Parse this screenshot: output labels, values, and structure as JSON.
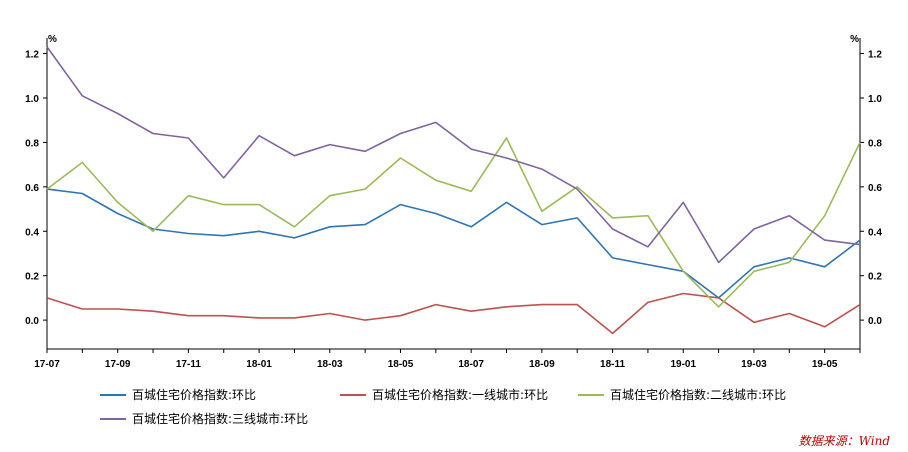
{
  "chart_data": {
    "type": "line",
    "title": "",
    "y_unit_left": "%",
    "y_unit_right": "%",
    "ylim": [
      -0.13,
      1.27
    ],
    "y_ticks": [
      "1.2",
      "1.0",
      "0.8",
      "0.6",
      "0.4",
      "0.2",
      "0.0"
    ],
    "y_tick_values": [
      1.2,
      1.0,
      0.8,
      0.6,
      0.4,
      0.2,
      0.0
    ],
    "x_ticks": [
      "17-07",
      "17-09",
      "17-11",
      "18-01",
      "18-03",
      "18-05",
      "18-07",
      "18-09",
      "18-11",
      "19-01",
      "19-03",
      "19-05"
    ],
    "x_tick_index": [
      0,
      2,
      4,
      6,
      8,
      10,
      12,
      14,
      16,
      18,
      20,
      22
    ],
    "x": [
      "2017-07",
      "2017-08",
      "2017-09",
      "2017-10",
      "2017-11",
      "2017-12",
      "2018-01",
      "2018-02",
      "2018-03",
      "2018-04",
      "2018-05",
      "2018-06",
      "2018-07",
      "2018-08",
      "2018-09",
      "2018-10",
      "2018-11",
      "2018-12",
      "2019-01",
      "2019-02",
      "2019-03",
      "2019-04",
      "2019-05",
      "2019-06"
    ],
    "grid": false,
    "legend_position": "bottom",
    "series": [
      {
        "name": "百城住宅价格指数:环比",
        "color": "#2e75b6",
        "values": [
          0.59,
          0.57,
          0.48,
          0.41,
          0.39,
          0.38,
          0.4,
          0.37,
          0.42,
          0.43,
          0.52,
          0.48,
          0.42,
          0.53,
          0.43,
          0.46,
          0.28,
          0.25,
          0.22,
          0.1,
          0.24,
          0.28,
          0.24,
          0.36
        ]
      },
      {
        "name": "百城住宅价格指数:一线城市:环比",
        "color": "#c0504d",
        "values": [
          0.1,
          0.05,
          0.05,
          0.04,
          0.02,
          0.02,
          0.01,
          0.01,
          0.03,
          0.0,
          0.02,
          0.07,
          0.04,
          0.06,
          0.07,
          0.07,
          -0.06,
          0.08,
          0.12,
          0.1,
          -0.01,
          0.03,
          -0.03,
          0.07
        ]
      },
      {
        "name": "百城住宅价格指数:二线城市:环比",
        "color": "#9bbb59",
        "values": [
          0.59,
          0.71,
          0.53,
          0.4,
          0.56,
          0.52,
          0.52,
          0.42,
          0.56,
          0.59,
          0.73,
          0.63,
          0.58,
          0.82,
          0.49,
          0.6,
          0.46,
          0.47,
          0.22,
          0.06,
          0.22,
          0.26,
          0.47,
          0.8
        ]
      },
      {
        "name": "百城住宅价格指数:三线城市:环比",
        "color": "#8064a2",
        "values": [
          1.23,
          1.01,
          0.93,
          0.84,
          0.82,
          0.64,
          0.83,
          0.74,
          0.79,
          0.76,
          0.84,
          0.89,
          0.77,
          0.73,
          0.68,
          0.59,
          0.41,
          0.33,
          0.53,
          0.26,
          0.41,
          0.47,
          0.36,
          0.34
        ]
      }
    ]
  },
  "legend": {
    "item1": "百城住宅价格指数:环比",
    "item2": "百城住宅价格指数:一线城市:环比",
    "item3": "百城住宅价格指数:二线城市:环比",
    "item4": "百城住宅价格指数:三线城市:环比"
  },
  "source": "数据来源：Wind"
}
